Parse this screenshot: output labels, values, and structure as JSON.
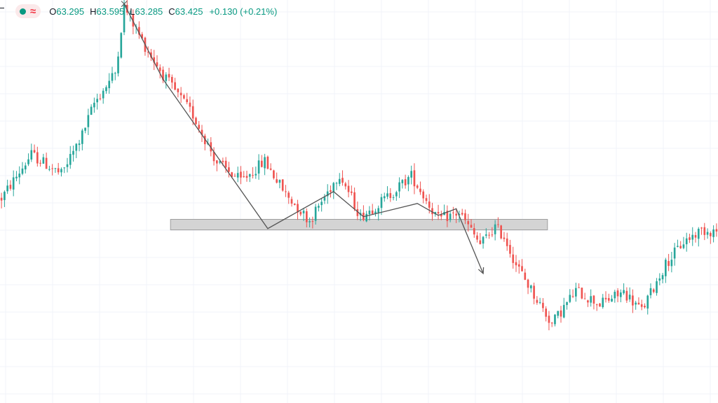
{
  "legend": {
    "status_icon": "green-dot-icon",
    "indicator_icon": "wave-icon",
    "open_label": "O",
    "open": "63.295",
    "high_label": "H",
    "high": "63.595",
    "low_label": "L",
    "low": "63.285",
    "close_label": "C",
    "close": "63.425",
    "change": "+0.130 (+0.21%)"
  },
  "colors": {
    "up": "#26a69a",
    "down": "#ef5350",
    "grid": "#f0f3fa",
    "drawing": "#555555",
    "zone_fill": "#cfcfcf",
    "zone_stroke": "#9e9e9e",
    "legend_value": "#089981"
  },
  "chart_data": {
    "type": "candlestick",
    "title": "",
    "xlabel": "",
    "ylabel": "",
    "n_bars": 240,
    "ylim": [
      60.6,
      63.65
    ],
    "grid": true,
    "trend_path": [
      {
        "bar": 41,
        "price": 63.62
      },
      {
        "bar": 54,
        "price": 63.05
      },
      {
        "bar": 89,
        "price": 61.92
      },
      {
        "bar": 111,
        "price": 62.2
      },
      {
        "bar": 121,
        "price": 62.01
      },
      {
        "bar": 139,
        "price": 62.11
      },
      {
        "bar": 146,
        "price": 62.02
      },
      {
        "bar": 152,
        "price": 62.07
      },
      {
        "bar": 161,
        "price": 61.58
      }
    ],
    "support_zone": {
      "low": 61.91,
      "high": 61.99,
      "from_bar": 57,
      "to_bar": 183
    },
    "key_points": [
      {
        "bar": 0,
        "price": 62.15
      },
      {
        "bar": 10,
        "price": 62.48
      },
      {
        "bar": 20,
        "price": 62.33
      },
      {
        "bar": 27,
        "price": 62.63
      },
      {
        "bar": 31,
        "price": 62.87
      },
      {
        "bar": 38,
        "price": 63.1
      },
      {
        "bar": 41,
        "price": 63.6
      },
      {
        "bar": 48,
        "price": 63.3
      },
      {
        "bar": 55,
        "price": 63.05
      },
      {
        "bar": 64,
        "price": 62.78
      },
      {
        "bar": 72,
        "price": 62.42
      },
      {
        "bar": 80,
        "price": 62.28
      },
      {
        "bar": 88,
        "price": 62.43
      },
      {
        "bar": 95,
        "price": 62.18
      },
      {
        "bar": 103,
        "price": 61.98
      },
      {
        "bar": 113,
        "price": 62.34
      },
      {
        "bar": 120,
        "price": 62.01
      },
      {
        "bar": 128,
        "price": 62.14
      },
      {
        "bar": 137,
        "price": 62.32
      },
      {
        "bar": 146,
        "price": 61.99
      },
      {
        "bar": 153,
        "price": 62.04
      },
      {
        "bar": 160,
        "price": 61.8
      },
      {
        "bar": 165,
        "price": 61.93
      },
      {
        "bar": 168,
        "price": 61.86
      },
      {
        "bar": 172,
        "price": 61.65
      },
      {
        "bar": 178,
        "price": 61.42
      },
      {
        "bar": 184,
        "price": 61.2
      },
      {
        "bar": 192,
        "price": 61.45
      },
      {
        "bar": 200,
        "price": 61.35
      },
      {
        "bar": 208,
        "price": 61.44
      },
      {
        "bar": 214,
        "price": 61.3
      },
      {
        "bar": 222,
        "price": 61.65
      },
      {
        "bar": 228,
        "price": 61.82
      },
      {
        "bar": 234,
        "price": 61.91
      },
      {
        "bar": 239,
        "price": 61.9
      }
    ]
  }
}
